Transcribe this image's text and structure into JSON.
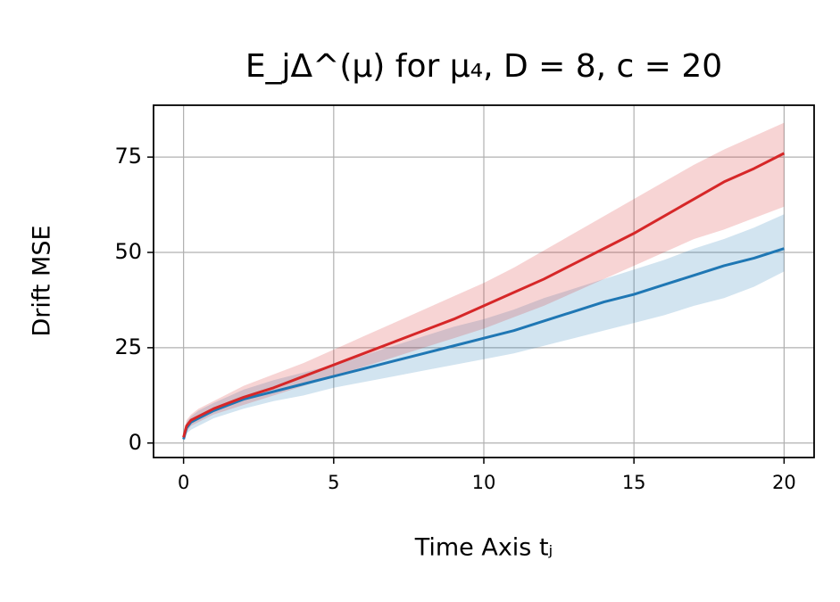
{
  "chart_data": {
    "type": "line",
    "title": "E_jΔ^(μ) for μ₄, D = 8, c = 20",
    "xlabel": "Time Axis tⱼ",
    "ylabel": "Drift MSE",
    "x": [
      0,
      0.1,
      0.25,
      0.5,
      1,
      2,
      3,
      4,
      5,
      6,
      7,
      8,
      9,
      10,
      11,
      12,
      13,
      14,
      15,
      16,
      17,
      18,
      19,
      20
    ],
    "series": [
      {
        "color": "#1f77b4",
        "values": [
          1,
          4,
          5.5,
          6.5,
          8.5,
          11.5,
          13.5,
          15.5,
          17.5,
          19.5,
          21.5,
          23.5,
          25.5,
          27.5,
          29.5,
          32,
          34.5,
          37,
          39,
          41.5,
          44,
          46.5,
          48.5,
          51
        ],
        "lower": [
          0.5,
          2.5,
          3.5,
          4.5,
          6.5,
          9,
          11,
          12.5,
          14.5,
          16,
          17.5,
          19,
          20.5,
          22,
          23.5,
          25.5,
          27.5,
          29.5,
          31.5,
          33.5,
          36,
          38,
          41,
          45
        ],
        "upper": [
          1.5,
          5.5,
          7,
          8.5,
          10.5,
          14,
          16.5,
          18.5,
          20.5,
          23,
          25.5,
          28,
          30.5,
          32.5,
          35,
          38,
          40.5,
          43,
          45.5,
          48,
          51,
          53.5,
          56.5,
          60
        ]
      },
      {
        "color": "#d62728",
        "values": [
          1.5,
          4.5,
          6,
          7,
          9,
          12,
          14.5,
          17.5,
          20.5,
          23.5,
          26.5,
          29.5,
          32.5,
          36,
          39.5,
          43,
          47,
          51,
          55,
          59.5,
          64,
          68.5,
          72,
          76
        ],
        "lower": [
          1,
          3,
          4.5,
          5.5,
          7.5,
          10,
          12.5,
          15,
          17.5,
          20,
          22.5,
          25,
          27.5,
          30,
          33,
          36,
          39.5,
          43,
          46.5,
          50,
          53.5,
          56,
          59,
          62
        ],
        "upper": [
          2,
          6,
          7.5,
          9,
          11,
          15,
          18,
          21,
          24.5,
          28,
          31.5,
          35,
          38.5,
          42,
          46,
          50.5,
          55,
          59.5,
          64,
          68.5,
          73,
          77,
          80.5,
          84
        ]
      }
    ],
    "xlim": [
      -1,
      21
    ],
    "ylim": [
      -3.8,
      88.6
    ],
    "xticks": [
      0,
      5,
      10,
      15,
      20
    ],
    "yticks": [
      0,
      25,
      50,
      75
    ],
    "grid": true
  }
}
